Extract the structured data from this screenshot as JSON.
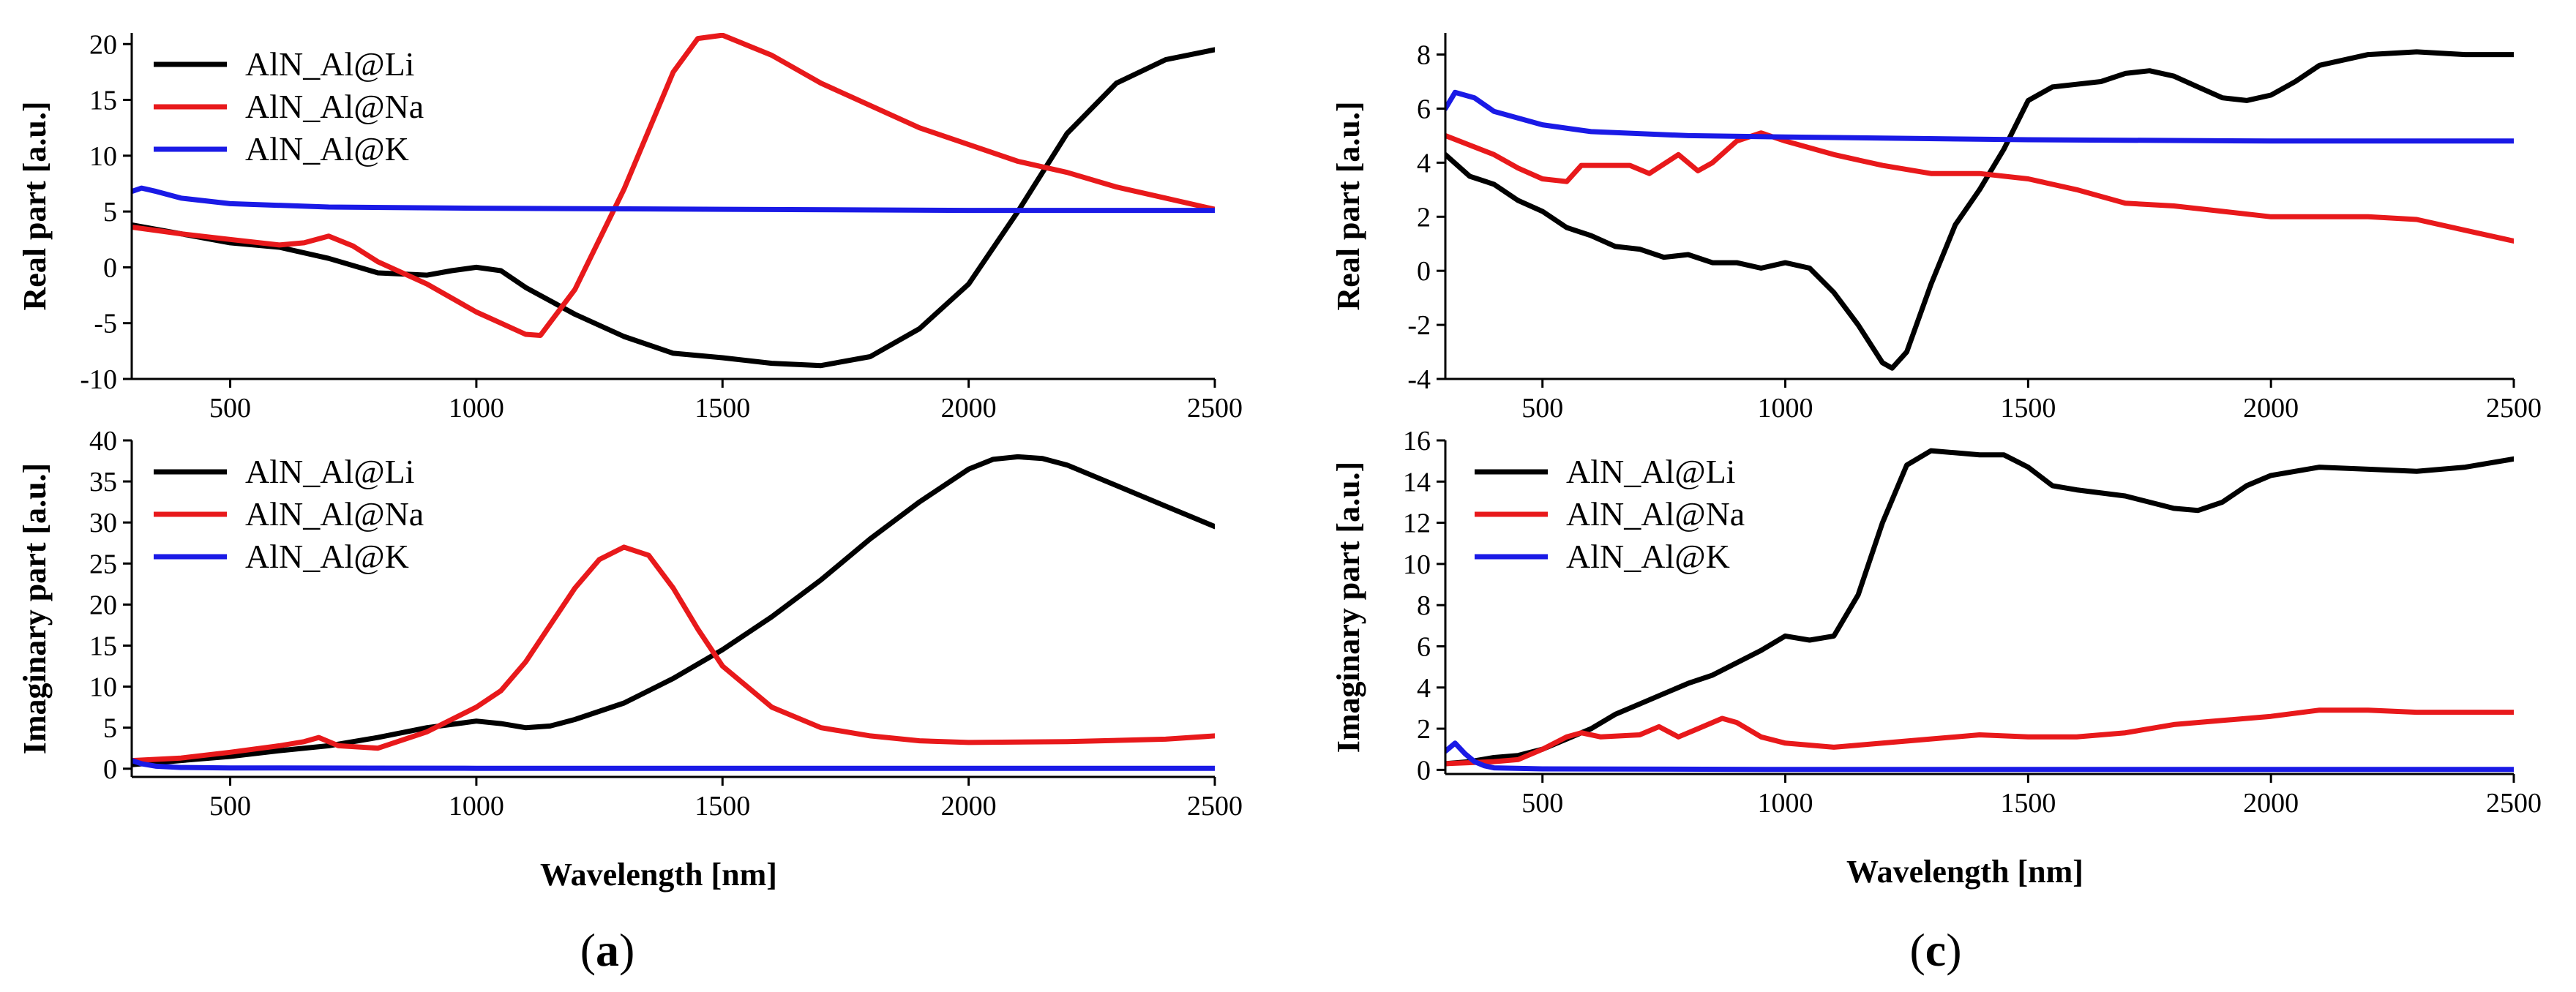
{
  "figure": {
    "panel_labels": [
      {
        "open": "(",
        "letter": "a",
        "close": ")"
      },
      {
        "open": "(",
        "letter": "c",
        "close": ")"
      }
    ]
  },
  "colors": {
    "li": "#000000",
    "na": "#e8191b",
    "k": "#1a1ae6",
    "axis": "#000000"
  },
  "chart_data": [
    {
      "id": "a-real",
      "type": "line",
      "ylabel": "Real part [a.u.]",
      "xlabel": "",
      "xlim": [
        300,
        2500
      ],
      "ylim": [
        -10,
        21
      ],
      "xticks": [
        "500",
        "1000",
        "1500",
        "2000",
        "2500"
      ],
      "xtick_values": [
        500,
        1000,
        1500,
        2000,
        2500
      ],
      "yticks": [
        "-10",
        "-5",
        "0",
        "5",
        "10",
        "15",
        "20"
      ],
      "ytick_values": [
        -10,
        -5,
        0,
        5,
        10,
        15,
        20
      ],
      "legend": [
        "AlN_Al@Li",
        "AlN_Al@Na",
        "AlN_Al@K"
      ],
      "series": [
        {
          "name": "AlN_Al@Li",
          "key": "li",
          "x": [
            300,
            400,
            500,
            600,
            700,
            800,
            900,
            950,
            1000,
            1050,
            1100,
            1200,
            1300,
            1400,
            1500,
            1600,
            1700,
            1800,
            1900,
            2000,
            2100,
            2200,
            2300,
            2400,
            2500
          ],
          "y": [
            3.8,
            3.0,
            2.2,
            1.8,
            0.8,
            -0.5,
            -0.7,
            -0.3,
            0.0,
            -0.3,
            -1.8,
            -4.2,
            -6.2,
            -7.7,
            -8.1,
            -8.6,
            -8.8,
            -8.0,
            -5.5,
            -1.5,
            5.0,
            12.0,
            16.5,
            18.6,
            19.5
          ]
        },
        {
          "name": "AlN_Al@Na",
          "key": "na",
          "x": [
            300,
            400,
            500,
            600,
            650,
            700,
            750,
            800,
            900,
            1000,
            1050,
            1100,
            1130,
            1200,
            1300,
            1400,
            1450,
            1500,
            1600,
            1700,
            1800,
            1900,
            2000,
            2100,
            2200,
            2300,
            2400,
            2500
          ],
          "y": [
            3.6,
            3.0,
            2.5,
            2.0,
            2.2,
            2.8,
            1.9,
            0.5,
            -1.5,
            -4.0,
            -5.0,
            -6.0,
            -6.1,
            -2.0,
            7.0,
            17.5,
            20.5,
            20.8,
            19.0,
            16.5,
            14.5,
            12.5,
            11.0,
            9.5,
            8.5,
            7.2,
            6.2,
            5.2
          ]
        },
        {
          "name": "AlN_Al@K",
          "key": "k",
          "x": [
            300,
            320,
            350,
            400,
            500,
            700,
            1000,
            1500,
            2000,
            2500
          ],
          "y": [
            6.8,
            7.1,
            6.8,
            6.2,
            5.7,
            5.4,
            5.3,
            5.2,
            5.1,
            5.1
          ]
        }
      ]
    },
    {
      "id": "a-imag",
      "type": "line",
      "ylabel": "Imaginary part [a.u.]",
      "xlabel": "Wavelength [nm]",
      "xlim": [
        300,
        2500
      ],
      "ylim": [
        -1,
        40
      ],
      "xticks": [
        "500",
        "1000",
        "1500",
        "2000",
        "2500"
      ],
      "xtick_values": [
        500,
        1000,
        1500,
        2000,
        2500
      ],
      "yticks": [
        "0",
        "5",
        "10",
        "15",
        "20",
        "25",
        "30",
        "35",
        "40"
      ],
      "ytick_values": [
        0,
        5,
        10,
        15,
        20,
        25,
        30,
        35,
        40
      ],
      "legend": [
        "AlN_Al@Li",
        "AlN_Al@Na",
        "AlN_Al@K"
      ],
      "series": [
        {
          "name": "AlN_Al@Li",
          "key": "li",
          "x": [
            300,
            400,
            500,
            600,
            700,
            800,
            900,
            1000,
            1050,
            1100,
            1150,
            1200,
            1300,
            1400,
            1500,
            1600,
            1700,
            1800,
            1900,
            2000,
            2050,
            2100,
            2150,
            2200,
            2300,
            2400,
            2500
          ],
          "y": [
            0.5,
            1.0,
            1.5,
            2.2,
            2.8,
            3.8,
            5.0,
            5.8,
            5.5,
            5.0,
            5.2,
            6.0,
            8.0,
            11.0,
            14.5,
            18.5,
            23.0,
            28.0,
            32.5,
            36.5,
            37.7,
            38.0,
            37.8,
            37.0,
            34.5,
            32.0,
            29.5
          ]
        },
        {
          "name": "AlN_Al@Na",
          "key": "na",
          "x": [
            300,
            400,
            500,
            600,
            650,
            680,
            720,
            800,
            900,
            1000,
            1050,
            1100,
            1150,
            1200,
            1250,
            1300,
            1350,
            1400,
            1450,
            1500,
            1600,
            1700,
            1800,
            1900,
            2000,
            2200,
            2400,
            2500
          ],
          "y": [
            1.0,
            1.3,
            2.0,
            2.8,
            3.3,
            3.8,
            2.8,
            2.5,
            4.5,
            7.5,
            9.5,
            13.0,
            17.5,
            22.0,
            25.5,
            27.0,
            26.0,
            22.0,
            17.0,
            12.5,
            7.5,
            5.0,
            4.0,
            3.4,
            3.2,
            3.3,
            3.6,
            4.0
          ]
        },
        {
          "name": "AlN_Al@K",
          "key": "k",
          "x": [
            300,
            320,
            350,
            400,
            500,
            1000,
            1500,
            2000,
            2500
          ],
          "y": [
            1.0,
            0.6,
            0.3,
            0.15,
            0.1,
            0.05,
            0.05,
            0.05,
            0.05
          ]
        }
      ]
    },
    {
      "id": "c-real",
      "type": "line",
      "ylabel": "Real part [a.u.]",
      "xlabel": "",
      "xlim": [
        300,
        2500
      ],
      "ylim": [
        -4,
        8.8
      ],
      "xticks": [
        "500",
        "1000",
        "1500",
        "2000",
        "2500"
      ],
      "xtick_values": [
        500,
        1000,
        1500,
        2000,
        2500
      ],
      "yticks": [
        "-4",
        "-2",
        "0",
        "2",
        "4",
        "6",
        "8"
      ],
      "ytick_values": [
        -4,
        -2,
        0,
        2,
        4,
        6,
        8
      ],
      "legend": [],
      "series": [
        {
          "name": "AlN_Al@Li",
          "key": "li",
          "x": [
            300,
            350,
            400,
            450,
            500,
            550,
            600,
            650,
            700,
            750,
            800,
            850,
            900,
            950,
            1000,
            1050,
            1100,
            1150,
            1200,
            1220,
            1250,
            1300,
            1350,
            1400,
            1450,
            1500,
            1550,
            1600,
            1650,
            1700,
            1750,
            1800,
            1850,
            1900,
            1950,
            2000,
            2050,
            2100,
            2200,
            2300,
            2400,
            2500
          ],
          "y": [
            4.3,
            3.5,
            3.2,
            2.6,
            2.2,
            1.6,
            1.3,
            0.9,
            0.8,
            0.5,
            0.6,
            0.3,
            0.3,
            0.1,
            0.3,
            0.1,
            -0.8,
            -2.0,
            -3.4,
            -3.6,
            -3.0,
            -0.5,
            1.7,
            3.0,
            4.5,
            6.3,
            6.8,
            6.9,
            7.0,
            7.3,
            7.4,
            7.2,
            6.8,
            6.4,
            6.3,
            6.5,
            7.0,
            7.6,
            8.0,
            8.1,
            8.0,
            8.0
          ]
        },
        {
          "name": "AlN_Al@Na",
          "key": "na",
          "x": [
            300,
            400,
            450,
            500,
            550,
            580,
            620,
            680,
            720,
            780,
            820,
            850,
            900,
            950,
            1000,
            1100,
            1200,
            1300,
            1400,
            1500,
            1600,
            1700,
            1800,
            1900,
            2000,
            2100,
            2200,
            2300,
            2400,
            2500
          ],
          "y": [
            5.0,
            4.3,
            3.8,
            3.4,
            3.3,
            3.9,
            3.9,
            3.9,
            3.6,
            4.3,
            3.7,
            4.0,
            4.8,
            5.1,
            4.8,
            4.3,
            3.9,
            3.6,
            3.6,
            3.4,
            3.0,
            2.5,
            2.4,
            2.2,
            2.0,
            2.0,
            2.0,
            1.9,
            1.5,
            1.1
          ]
        },
        {
          "name": "AlN_Al@K",
          "key": "k",
          "x": [
            300,
            320,
            340,
            360,
            400,
            500,
            600,
            800,
            1000,
            1500,
            2000,
            2500
          ],
          "y": [
            6.0,
            6.6,
            6.5,
            6.4,
            5.9,
            5.4,
            5.15,
            5.0,
            4.95,
            4.85,
            4.8,
            4.8
          ]
        }
      ]
    },
    {
      "id": "c-imag",
      "type": "line",
      "ylabel": "Imaginary part [a.u.]",
      "xlabel": "Wavelength [nm]",
      "xlim": [
        300,
        2500
      ],
      "ylim": [
        -0.2,
        16
      ],
      "xticks": [
        "500",
        "1000",
        "1500",
        "2000",
        "2500"
      ],
      "xtick_values": [
        500,
        1000,
        1500,
        2000,
        2500
      ],
      "yticks": [
        "0",
        "2",
        "4",
        "6",
        "8",
        "10",
        "12",
        "14",
        "16"
      ],
      "ytick_values": [
        0,
        2,
        4,
        6,
        8,
        10,
        12,
        14,
        16
      ],
      "legend": [
        "AlN_Al@Li",
        "AlN_Al@Na",
        "AlN_Al@K"
      ],
      "series": [
        {
          "name": "AlN_Al@Li",
          "key": "li",
          "x": [
            300,
            350,
            400,
            450,
            500,
            550,
            600,
            650,
            700,
            750,
            800,
            850,
            900,
            950,
            1000,
            1050,
            1100,
            1150,
            1200,
            1250,
            1300,
            1350,
            1400,
            1450,
            1500,
            1550,
            1600,
            1700,
            1800,
            1850,
            1900,
            1950,
            2000,
            2100,
            2200,
            2300,
            2400,
            2500
          ],
          "y": [
            0.3,
            0.4,
            0.6,
            0.7,
            1.0,
            1.5,
            2.0,
            2.7,
            3.2,
            3.7,
            4.2,
            4.6,
            5.2,
            5.8,
            6.5,
            6.3,
            6.5,
            8.5,
            12.0,
            14.8,
            15.5,
            15.4,
            15.3,
            15.3,
            14.7,
            13.8,
            13.6,
            13.3,
            12.7,
            12.6,
            13.0,
            13.8,
            14.3,
            14.7,
            14.6,
            14.5,
            14.7,
            15.1
          ]
        },
        {
          "name": "AlN_Al@Na",
          "key": "na",
          "x": [
            300,
            400,
            450,
            500,
            550,
            580,
            620,
            700,
            740,
            780,
            820,
            870,
            900,
            950,
            1000,
            1100,
            1200,
            1300,
            1400,
            1500,
            1600,
            1700,
            1800,
            1900,
            2000,
            2100,
            2200,
            2300,
            2400,
            2500
          ],
          "y": [
            0.3,
            0.4,
            0.5,
            1.0,
            1.6,
            1.8,
            1.6,
            1.7,
            2.1,
            1.6,
            2.0,
            2.5,
            2.3,
            1.6,
            1.3,
            1.1,
            1.3,
            1.5,
            1.7,
            1.6,
            1.6,
            1.8,
            2.2,
            2.4,
            2.6,
            2.9,
            2.9,
            2.8,
            2.8,
            2.8
          ]
        },
        {
          "name": "AlN_Al@K",
          "key": "k",
          "x": [
            300,
            320,
            340,
            360,
            380,
            400,
            500,
            1000,
            1500,
            2000,
            2500
          ],
          "y": [
            0.9,
            1.3,
            0.8,
            0.4,
            0.2,
            0.1,
            0.05,
            0.02,
            0.02,
            0.02,
            0.02
          ]
        }
      ]
    }
  ]
}
